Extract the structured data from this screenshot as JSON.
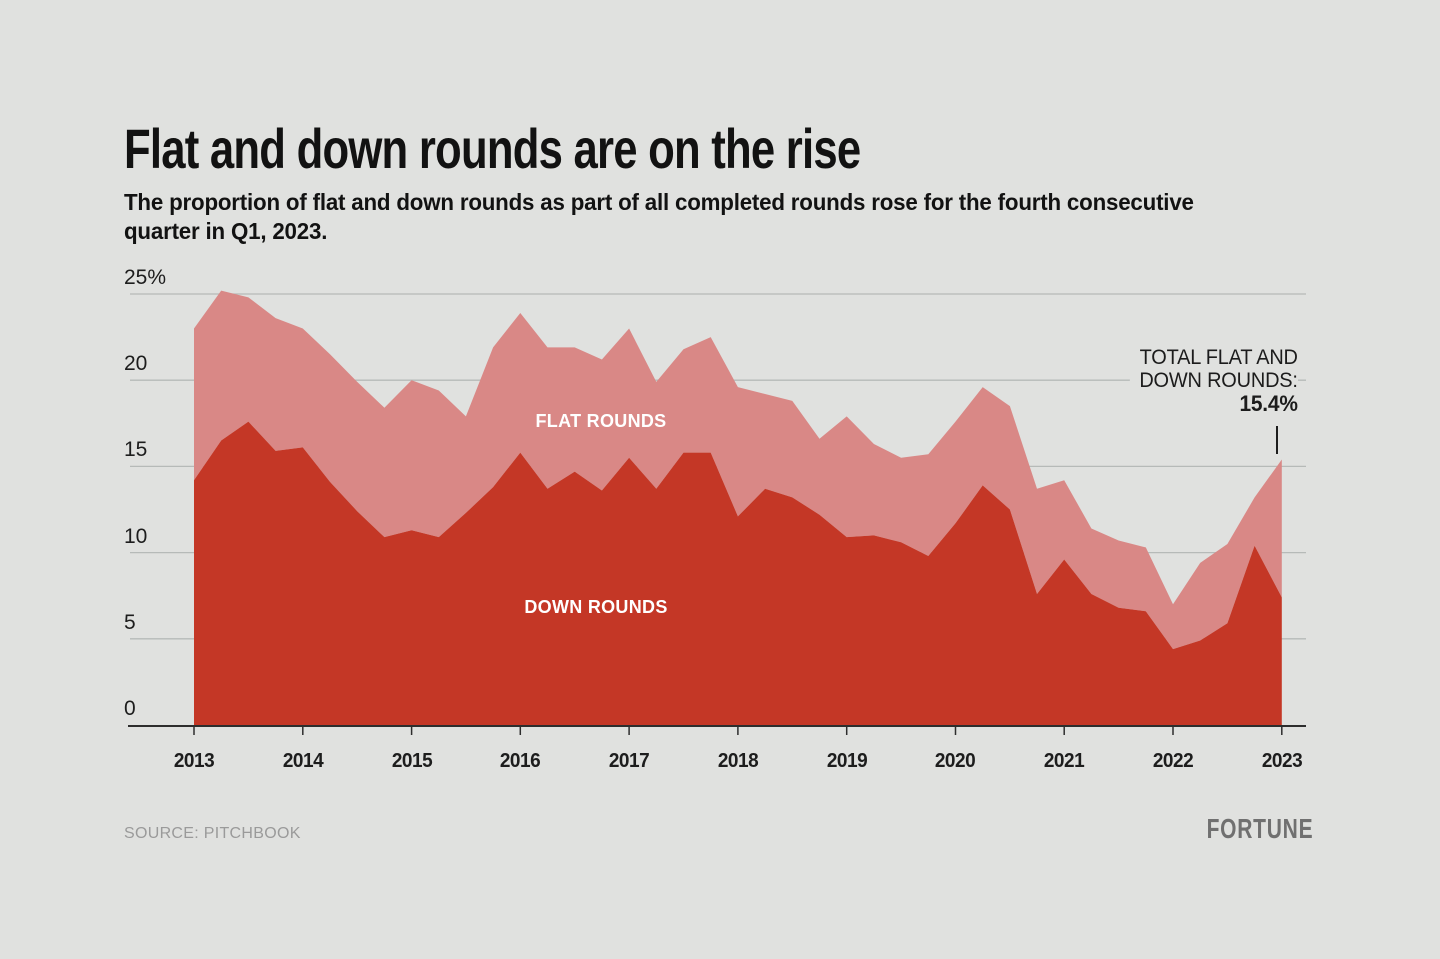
{
  "header": {
    "title": "Flat and down rounds are on the rise",
    "subtitle_line1": "The proportion of flat and down rounds as part of all completed rounds rose for the fourth consecutive",
    "subtitle_line2": "quarter in Q1, 2023."
  },
  "annotation": {
    "line1": "TOTAL FLAT AND",
    "line2": "DOWN ROUNDS:",
    "value": "15.4%"
  },
  "footer": {
    "source": "SOURCE: PITCHBOOK",
    "brand": "FORTUNE"
  },
  "colors": {
    "background": "#e0e1df",
    "down_area": "#c43726",
    "flat_area": "#d98886",
    "gridline": "#b6bab8",
    "axis": "#2d2d2d",
    "text": "#121212",
    "muted_text": "#9a9a9a"
  },
  "chart_data": {
    "type": "area",
    "stacked": true,
    "grid": true,
    "frequency": "quarterly",
    "ylim": [
      0,
      25
    ],
    "ylabel": "",
    "xlabel": "",
    "yticks": [
      {
        "value": 0,
        "label": "0"
      },
      {
        "value": 5,
        "label": "5"
      },
      {
        "value": 10,
        "label": "10"
      },
      {
        "value": 15,
        "label": "15"
      },
      {
        "value": 20,
        "label": "20"
      },
      {
        "value": 25,
        "label": "25%"
      }
    ],
    "xticks": [
      "2013",
      "2014",
      "2015",
      "2016",
      "2017",
      "2018",
      "2019",
      "2020",
      "2021",
      "2022",
      "2023"
    ],
    "categories": [
      "2013 Q1",
      "2013 Q2",
      "2013 Q3",
      "2013 Q4",
      "2014 Q1",
      "2014 Q2",
      "2014 Q3",
      "2014 Q4",
      "2015 Q1",
      "2015 Q2",
      "2015 Q3",
      "2015 Q4",
      "2016 Q1",
      "2016 Q2",
      "2016 Q3",
      "2016 Q4",
      "2017 Q1",
      "2017 Q2",
      "2017 Q3",
      "2017 Q4",
      "2018 Q1",
      "2018 Q2",
      "2018 Q3",
      "2018 Q4",
      "2019 Q1",
      "2019 Q2",
      "2019 Q3",
      "2019 Q4",
      "2020 Q1",
      "2020 Q2",
      "2020 Q3",
      "2020 Q4",
      "2021 Q1",
      "2021 Q2",
      "2021 Q3",
      "2021 Q4",
      "2022 Q1",
      "2022 Q2",
      "2022 Q3",
      "2022 Q4",
      "2023 Q1"
    ],
    "series": [
      {
        "name": "DOWN ROUNDS",
        "color": "#c43726",
        "values": [
          14.2,
          16.5,
          17.6,
          15.9,
          16.1,
          14.1,
          12.4,
          10.9,
          11.3,
          10.9,
          12.3,
          13.8,
          15.8,
          13.7,
          14.7,
          13.6,
          15.5,
          13.7,
          15.8,
          15.8,
          12.1,
          13.7,
          13.2,
          12.2,
          10.9,
          11.0,
          10.6,
          9.8,
          11.7,
          13.9,
          12.5,
          7.6,
          9.6,
          7.6,
          6.8,
          6.6,
          4.4,
          4.9,
          5.9,
          10.4,
          7.4
        ]
      },
      {
        "name": "FLAT ROUNDS",
        "color": "#d98886",
        "values": [
          8.8,
          8.7,
          7.2,
          7.7,
          6.9,
          7.4,
          7.5,
          7.5,
          8.7,
          8.5,
          5.6,
          8.1,
          8.1,
          8.2,
          7.2,
          7.6,
          7.5,
          6.2,
          6.0,
          6.7,
          7.5,
          5.5,
          5.6,
          4.4,
          7.0,
          5.3,
          4.9,
          5.9,
          5.9,
          5.7,
          6.0,
          6.1,
          4.6,
          3.8,
          3.9,
          3.7,
          2.6,
          4.5,
          4.6,
          2.8,
          8.0
        ]
      }
    ],
    "final_total_label": "15.4%",
    "final_total_value": 15.4,
    "legend_position": "inside-area"
  }
}
